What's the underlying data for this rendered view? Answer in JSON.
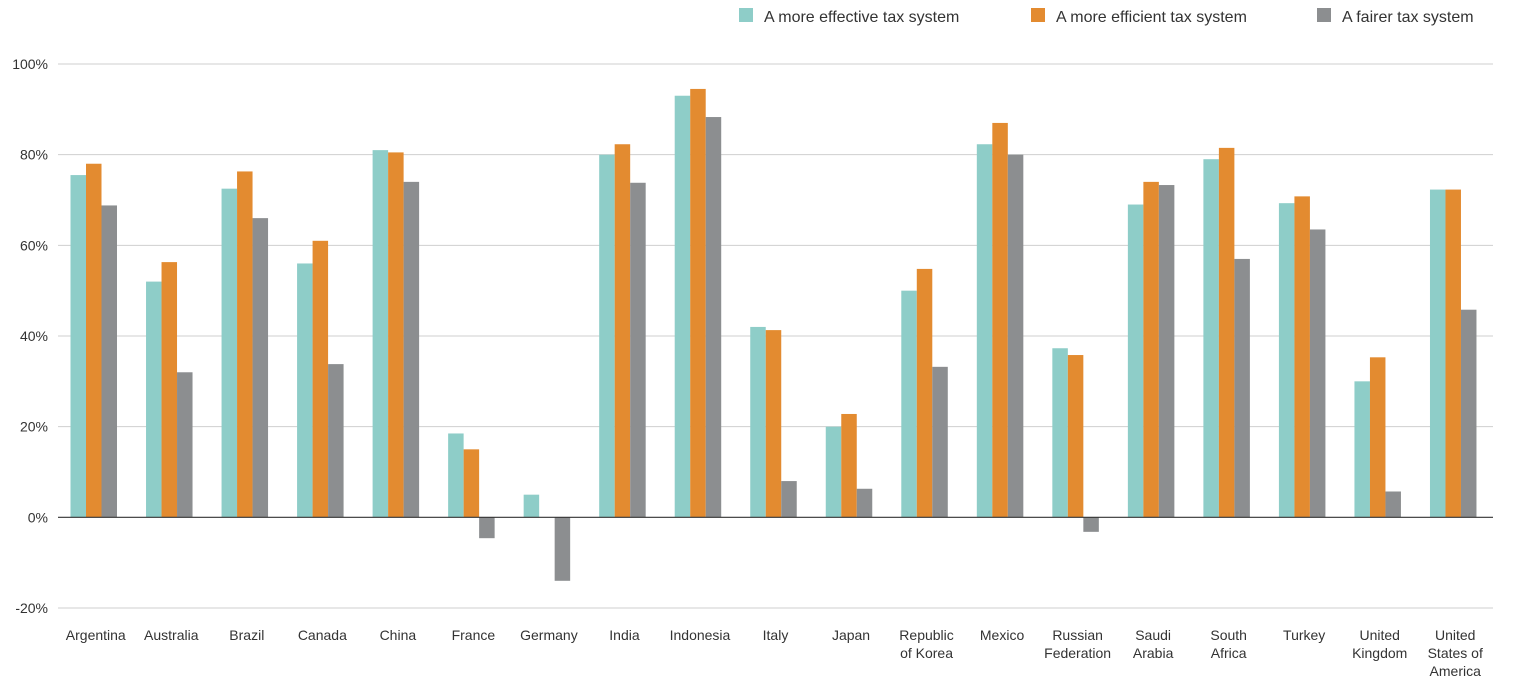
{
  "chart_data": {
    "type": "bar",
    "title": "",
    "xlabel": "",
    "ylabel": "",
    "ylim": [
      -20,
      100
    ],
    "yticks": [
      -20,
      0,
      20,
      40,
      60,
      80,
      100
    ],
    "ytick_labels": [
      "-20%",
      "0%",
      "20%",
      "40%",
      "60%",
      "80%",
      "100%"
    ],
    "grid": true,
    "legend_position": "top-right",
    "categories": [
      "Argentina",
      "Australia",
      "Brazil",
      "Canada",
      "China",
      "France",
      "Germany",
      "India",
      "Indonesia",
      "Italy",
      "Japan",
      "Republic of Korea",
      "Mexico",
      "Russian Federation",
      "Saudi Arabia",
      "South Africa",
      "Turkey",
      "United Kingdom",
      "United States of America"
    ],
    "category_lines": [
      [
        "Argentina"
      ],
      [
        "Australia"
      ],
      [
        "Brazil"
      ],
      [
        "Canada"
      ],
      [
        "China"
      ],
      [
        "France"
      ],
      [
        "Germany"
      ],
      [
        "India"
      ],
      [
        "Indonesia"
      ],
      [
        "Italy"
      ],
      [
        "Japan"
      ],
      [
        "Republic",
        "of Korea"
      ],
      [
        "Mexico"
      ],
      [
        "Russian",
        "Federation"
      ],
      [
        "Saudi",
        "Arabia"
      ],
      [
        "South",
        "Africa"
      ],
      [
        "Turkey"
      ],
      [
        "United",
        "Kingdom"
      ],
      [
        "United",
        "States of",
        "America"
      ]
    ],
    "series": [
      {
        "name": "A more effective tax system",
        "color": "#8ecdc8",
        "values": [
          75.5,
          52,
          72.5,
          56,
          81,
          18.5,
          5,
          80,
          93,
          42,
          20,
          50,
          82.3,
          37.3,
          69,
          79,
          69.3,
          30,
          72.3
        ]
      },
      {
        "name": "A more efficient tax system",
        "color": "#e38b30",
        "values": [
          78,
          56.3,
          76.3,
          61,
          80.5,
          15,
          0,
          82.3,
          94.5,
          41.3,
          22.8,
          54.8,
          87,
          35.8,
          74,
          81.5,
          70.8,
          35.3,
          72.3
        ]
      },
      {
        "name": "A fairer tax system",
        "color": "#8c8e90",
        "values": [
          68.8,
          32,
          66,
          33.8,
          74,
          -4.6,
          -14,
          73.8,
          88.3,
          8,
          6.3,
          33.2,
          80,
          -3.2,
          73.3,
          57,
          63.5,
          5.7,
          45.8
        ]
      }
    ]
  }
}
